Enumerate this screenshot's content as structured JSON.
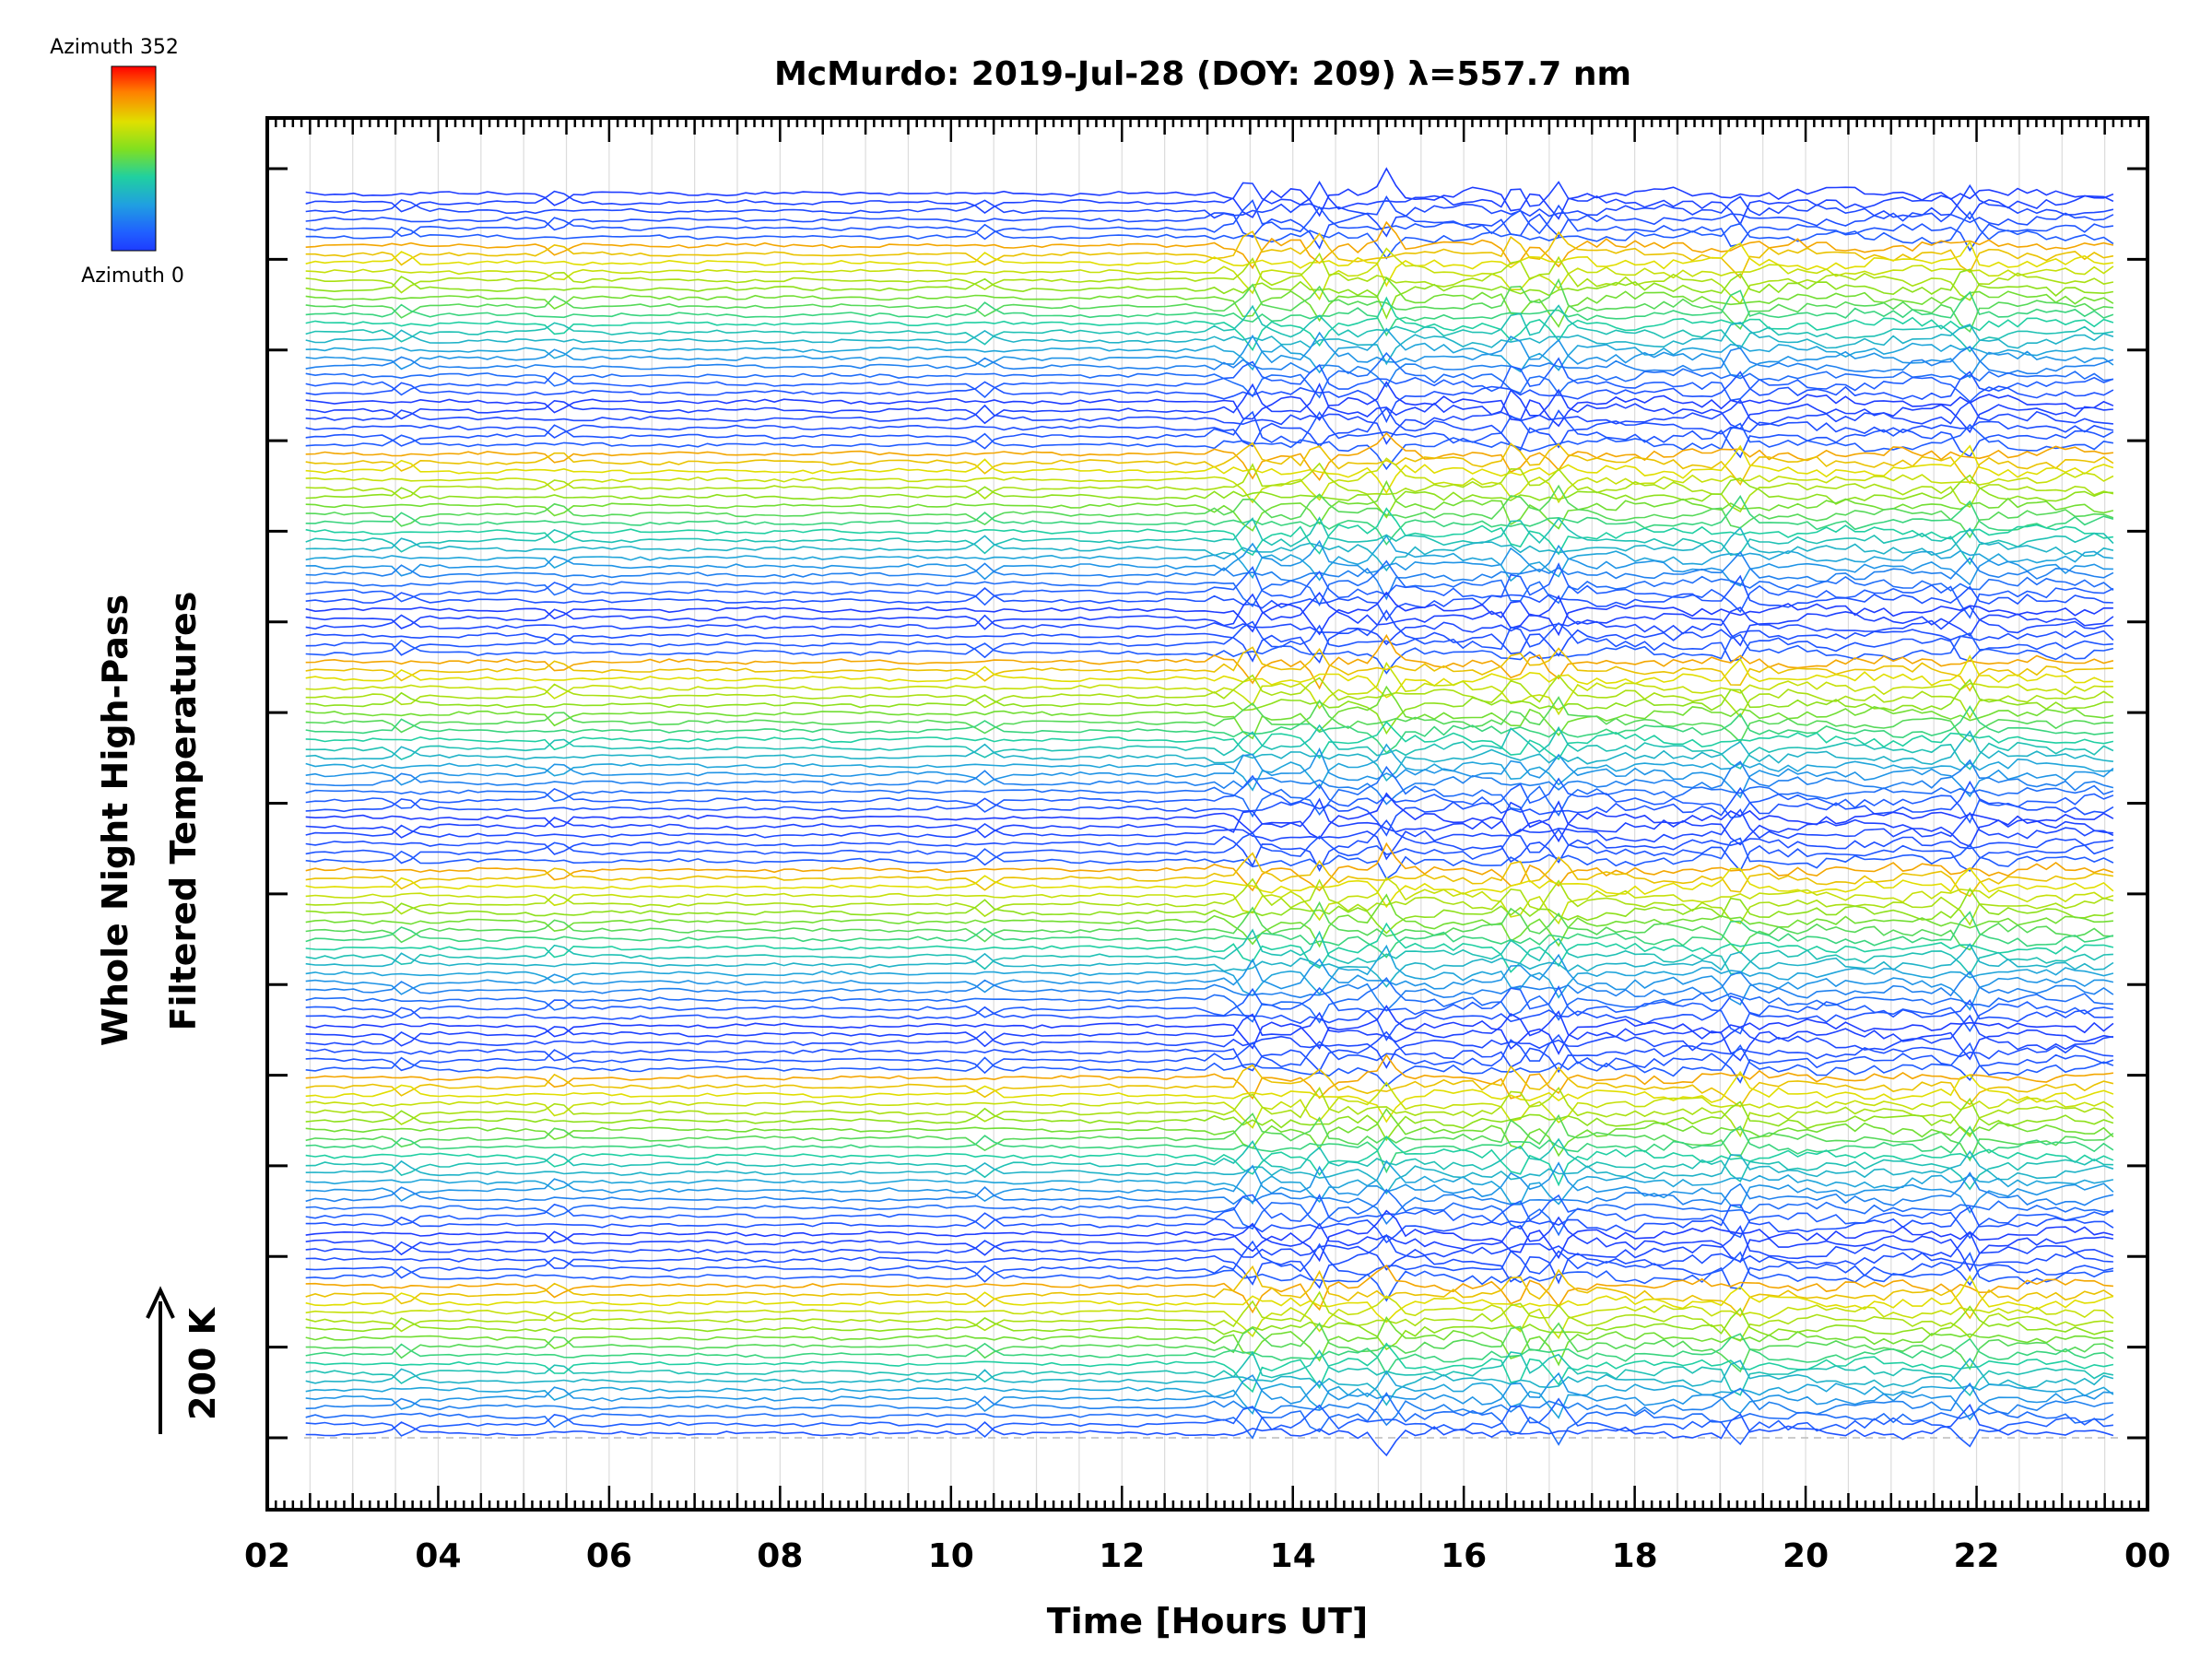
{
  "chart_data": {
    "type": "line",
    "title": "McMurdo: 2019-Jul-28 (DOY: 209) λ=557.7 nm",
    "xlabel": "Time [Hours UT]",
    "ylabel_lines": [
      "Whole Night High-Pass",
      "Filtered Temperatures"
    ],
    "scale_bar_label": "200 K",
    "x_tick_labels": [
      "02",
      "04",
      "06",
      "08",
      "10",
      "12",
      "14",
      "16",
      "18",
      "20",
      "22",
      "00"
    ],
    "x_range_hours": [
      2,
      24
    ],
    "data_time_range_hours": [
      2.45,
      23.6
    ],
    "y_major_ticks": 15,
    "grid": true,
    "series_count": 144,
    "series_color_encoding": "azimuth (0 = blue, 352 = red)",
    "colorbar": {
      "top_label": "Azimuth  352",
      "bottom_label": "Azimuth  0",
      "min": 0,
      "max": 352,
      "stops": [
        "#ff0000",
        "#ff8000",
        "#e0e000",
        "#80e020",
        "#20d0a0",
        "#20a0e0",
        "#2060ff",
        "#1e3cff"
      ]
    },
    "active_period_hours": [
      13.0,
      23.6
    ],
    "spike_times_hours": [
      3.6,
      5.4,
      10.4,
      13.5,
      14.3,
      15.1,
      16.6,
      17.1,
      19.2,
      21.9
    ]
  }
}
